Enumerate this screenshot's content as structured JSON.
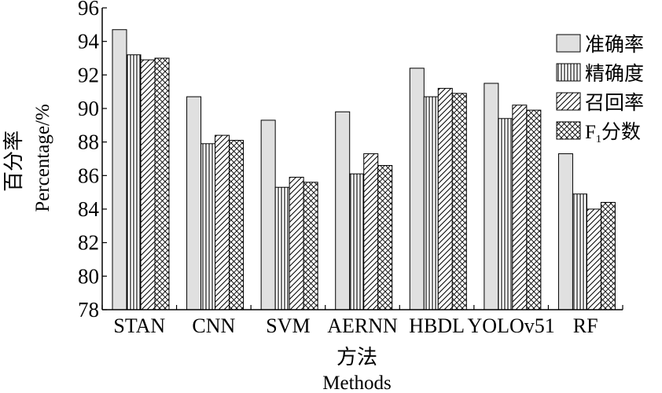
{
  "chart_data": {
    "type": "bar",
    "categories": [
      "STAN",
      "CNN",
      "SVM",
      "AERNN",
      "HBDL",
      "YOLOv51",
      "RF"
    ],
    "series": [
      {
        "name": "准确率",
        "values": [
          94.7,
          90.7,
          89.3,
          89.8,
          92.4,
          91.5,
          87.3
        ],
        "pattern": "gray"
      },
      {
        "name": "精确度",
        "values": [
          93.2,
          87.9,
          85.3,
          86.1,
          90.7,
          89.4,
          84.9
        ],
        "pattern": "vertical"
      },
      {
        "name": "召回率",
        "values": [
          92.9,
          88.4,
          85.9,
          87.3,
          91.2,
          90.2,
          84.0
        ],
        "pattern": "diagonal"
      },
      {
        "name": "F1分数",
        "values": [
          93.0,
          88.1,
          85.6,
          86.6,
          90.9,
          89.9,
          84.4
        ],
        "pattern": "crosshatch"
      }
    ],
    "legend_labels": [
      {
        "main": "准确率"
      },
      {
        "main": "精确度"
      },
      {
        "main": "召回率"
      },
      {
        "prefix": "F",
        "sub": "1",
        "main": "分数"
      }
    ],
    "ylim": [
      78,
      96
    ],
    "yticks": [
      "78",
      "80",
      "82",
      "84",
      "86",
      "88",
      "90",
      "92",
      "94",
      "96"
    ],
    "xlabel_zh": "方法",
    "xlabel_en": "Methods",
    "ylabel_zh": "百分率",
    "ylabel_en": "Percentage/%",
    "legend_position": "top-right",
    "grid": false,
    "colors": {
      "gray": "#e0e0e0",
      "stroke": "#000000"
    }
  }
}
